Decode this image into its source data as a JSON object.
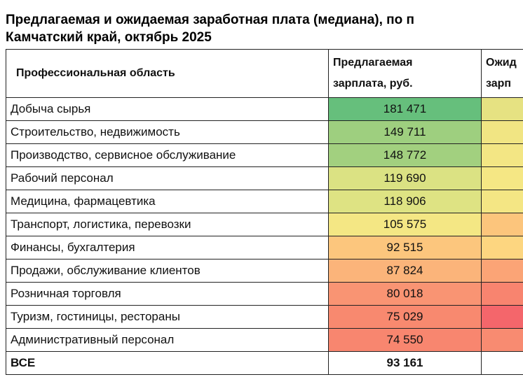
{
  "header": {
    "title_line1": "Предлагаемая и ожидаемая заработная плата (медиана), по п",
    "title_line2": "Камчатский край, октябрь 2025"
  },
  "table": {
    "columns": [
      "Профессиональная область",
      [
        "Предлагаемая",
        "зарплата, руб."
      ],
      [
        "Ожид",
        "зарп"
      ]
    ],
    "rows": [
      [
        "Добыча сырья",
        "181 471"
      ],
      [
        "Строительство, недвижимость",
        "149 711"
      ],
      [
        "Производство, сервисное обслуживание",
        "148 772"
      ],
      [
        "Рабочий персонал",
        "119 690"
      ],
      [
        "Медицина, фармацевтика",
        "118 906"
      ],
      [
        "Транспорт, логистика, перевозки",
        "105 575"
      ],
      [
        "Финансы, бухгалтерия",
        "92 515"
      ],
      [
        "Продажи, обслуживание клиентов",
        "87 824"
      ],
      [
        "Розничная торговля",
        "80 018"
      ],
      [
        "Туризм, гостиницы, рестораны",
        "75 029"
      ],
      [
        "Административный персонал",
        "74 550"
      ],
      [
        "ВСЕ",
        "93 161"
      ]
    ],
    "offered_colors": [
      "#66bf7c",
      "#9ecf7f",
      "#a2d07f",
      "#dbe283",
      "#dee383",
      "#f4e784",
      "#fcc67d",
      "#fbb47a",
      "#f99473",
      "#f8896f",
      "#f8866f",
      "#ffffff"
    ],
    "expected_colors": [
      "#e6e282",
      "#f1e583",
      "#f3e684",
      "#f5e784",
      "#f4e684",
      "#fcc57c",
      "#fdd680",
      "#fba476",
      "#f8846f",
      "#f4666b",
      "#f88b71",
      "#ffffff"
    ],
    "total_row_bold": true
  }
}
